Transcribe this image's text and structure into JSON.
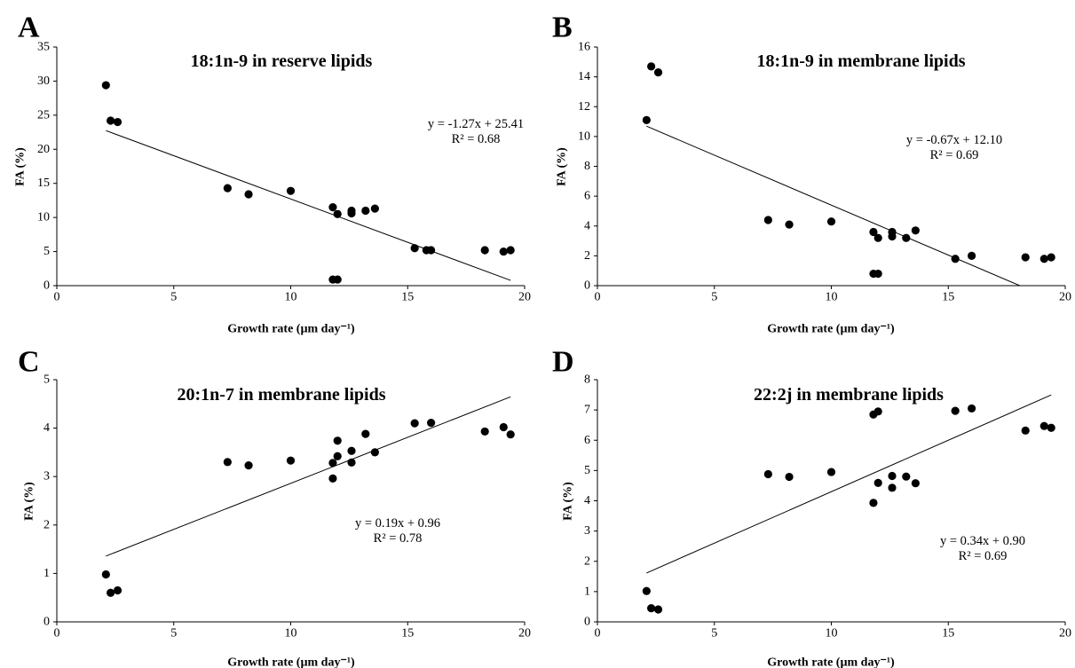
{
  "chart_data": [
    {
      "type": "scatter",
      "panel": "A",
      "title": "18:1n-9 in reserve lipids",
      "xlabel": "Growth rate (µm day⁻¹)",
      "ylabel": "FA (%)",
      "xlim": [
        0,
        20
      ],
      "ylim": [
        0,
        35
      ],
      "xticks": [
        "0",
        "5",
        "10",
        "15",
        "20"
      ],
      "yticks": [
        "0",
        "5",
        "10",
        "15",
        "20",
        "25",
        "30",
        "35"
      ],
      "points": [
        [
          2.1,
          29.4
        ],
        [
          2.3,
          24.2
        ],
        [
          2.6,
          24.0
        ],
        [
          7.3,
          14.3
        ],
        [
          8.2,
          13.4
        ],
        [
          10.0,
          13.9
        ],
        [
          11.8,
          11.5
        ],
        [
          12.0,
          10.5
        ],
        [
          12.6,
          11.0
        ],
        [
          12.6,
          10.6
        ],
        [
          13.2,
          11.0
        ],
        [
          13.6,
          11.3
        ],
        [
          11.8,
          0.9
        ],
        [
          12.0,
          0.9
        ],
        [
          15.3,
          5.5
        ],
        [
          15.8,
          5.2
        ],
        [
          16.0,
          5.2
        ],
        [
          18.3,
          5.2
        ],
        [
          19.1,
          5.0
        ],
        [
          19.4,
          5.2
        ]
      ],
      "trend_x": [
        2.1,
        19.4
      ],
      "equation": "y = -1.27x + 25.41",
      "r2": "R² = 0.68"
    },
    {
      "type": "scatter",
      "panel": "B",
      "title": "18:1n-9 in membrane lipids",
      "xlabel": "Growth rate (µm day⁻¹)",
      "ylabel": "FA (%)",
      "xlim": [
        0,
        20
      ],
      "ylim": [
        0,
        16
      ],
      "xticks": [
        "0",
        "5",
        "10",
        "15",
        "20"
      ],
      "yticks": [
        "0",
        "2",
        "4",
        "6",
        "8",
        "10",
        "12",
        "14",
        "16"
      ],
      "points": [
        [
          2.1,
          11.1
        ],
        [
          2.3,
          14.7
        ],
        [
          2.6,
          14.3
        ],
        [
          7.3,
          4.4
        ],
        [
          8.2,
          4.1
        ],
        [
          10.0,
          4.3
        ],
        [
          11.8,
          3.6
        ],
        [
          12.0,
          3.2
        ],
        [
          12.6,
          3.6
        ],
        [
          12.6,
          3.3
        ],
        [
          13.2,
          3.2
        ],
        [
          13.6,
          3.7
        ],
        [
          11.8,
          0.8
        ],
        [
          12.0,
          0.8
        ],
        [
          15.3,
          1.8
        ],
        [
          16.0,
          2.0
        ],
        [
          18.3,
          1.9
        ],
        [
          19.1,
          1.8
        ],
        [
          19.4,
          1.9
        ]
      ],
      "trend_x": [
        2.1,
        18.06
      ],
      "equation": "y = -0.67x + 12.10",
      "r2": "R² = 0.69"
    },
    {
      "type": "scatter",
      "panel": "C",
      "title": "20:1n-7 in membrane lipids",
      "xlabel": "Growth rate (µm day⁻¹)",
      "ylabel": "FA (%)",
      "xlim": [
        0,
        20
      ],
      "ylim": [
        0,
        5
      ],
      "xticks": [
        "0",
        "5",
        "10",
        "15",
        "20"
      ],
      "yticks": [
        "0",
        "1",
        "2",
        "3",
        "4",
        "5"
      ],
      "points": [
        [
          2.1,
          0.98
        ],
        [
          2.3,
          0.6
        ],
        [
          2.6,
          0.65
        ],
        [
          7.3,
          3.3
        ],
        [
          8.2,
          3.23
        ],
        [
          10.0,
          3.33
        ],
        [
          11.8,
          3.28
        ],
        [
          11.8,
          2.96
        ],
        [
          12.0,
          3.42
        ],
        [
          12.0,
          3.74
        ],
        [
          12.6,
          3.29
        ],
        [
          12.6,
          3.53
        ],
        [
          13.2,
          3.88
        ],
        [
          13.6,
          3.5
        ],
        [
          15.3,
          4.1
        ],
        [
          16.0,
          4.11
        ],
        [
          18.3,
          3.93
        ],
        [
          19.1,
          4.02
        ],
        [
          19.4,
          3.87
        ]
      ],
      "trend_x": [
        2.1,
        19.4
      ],
      "equation": "y = 0.19x + 0.96",
      "r2": "R² = 0.78"
    },
    {
      "type": "scatter",
      "panel": "D",
      "title": "22:2j in membrane lipids",
      "xlabel": "Growth rate (µm day⁻¹)",
      "ylabel": "FA (%)",
      "xlim": [
        0,
        20
      ],
      "ylim": [
        0,
        8
      ],
      "xticks": [
        "0",
        "5",
        "10",
        "15",
        "20"
      ],
      "yticks": [
        "0",
        "1",
        "2",
        "3",
        "4",
        "5",
        "6",
        "7",
        "8"
      ],
      "points": [
        [
          2.1,
          1.02
        ],
        [
          2.3,
          0.45
        ],
        [
          2.6,
          0.41
        ],
        [
          7.3,
          4.88
        ],
        [
          8.2,
          4.79
        ],
        [
          10.0,
          4.95
        ],
        [
          11.8,
          6.85
        ],
        [
          12.0,
          6.95
        ],
        [
          11.8,
          3.93
        ],
        [
          12.0,
          4.59
        ],
        [
          12.6,
          4.82
        ],
        [
          12.6,
          4.43
        ],
        [
          13.2,
          4.8
        ],
        [
          13.6,
          4.58
        ],
        [
          15.3,
          6.97
        ],
        [
          16.0,
          7.05
        ],
        [
          18.3,
          6.32
        ],
        [
          19.1,
          6.47
        ],
        [
          19.4,
          6.41
        ]
      ],
      "trend_x": [
        2.1,
        19.4
      ],
      "equation": "y = 0.34x + 0.90",
      "r2": "R² = 0.69"
    }
  ]
}
